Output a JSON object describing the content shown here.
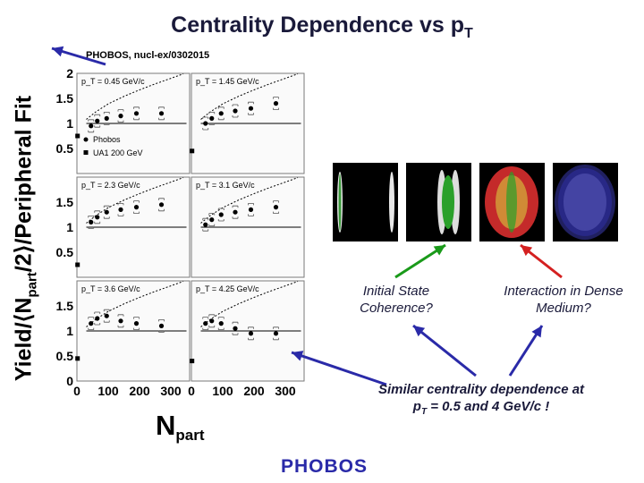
{
  "slide": {
    "title_main": "Centrality Dependence vs p",
    "title_sub": "T",
    "reference": "PHOBOS, nucl-ex/0302015",
    "y_label": "Yield/⟨N",
    "y_label_sub": "part",
    "y_label_tail": "/2⟩/Peripheral Fit",
    "x_label_main": "N",
    "x_label_sub": "part",
    "note_initial": "Initial State Coherence?",
    "note_interaction": "Interaction in Dense Medium?",
    "note_conclusion_1": "Similar centrality dependence at",
    "note_conclusion_2": "p",
    "note_conclusion_sub": "T",
    "note_conclusion_3": " = 0.5 and 4 GeV/c !",
    "logo_text": "PHOBOS",
    "colors": {
      "title": "#1a1a3a",
      "arrow_blue": "#2a2aa8",
      "arrow_green": "#1a9a1a",
      "arrow_red": "#d42020",
      "panel_border": "#7a7a7a"
    }
  },
  "chart_data": {
    "type": "scatter",
    "grid": "3x2 panels",
    "xlim": [
      0,
      360
    ],
    "ylim": [
      0,
      2
    ],
    "x_ticks": [
      "0",
      "100",
      "200",
      "300"
    ],
    "y_ticks": [
      "0",
      "0.5",
      "1",
      "1.5",
      "2"
    ],
    "legend": [
      "Phobos",
      "UA1 200 GeV"
    ],
    "panels": [
      {
        "label": "p_T = 0.45 GeV/c",
        "tick_top": "2",
        "phobos_x": [
          45,
          65,
          95,
          140,
          190,
          270
        ],
        "phobos_y": [
          0.95,
          1.05,
          1.1,
          1.15,
          1.2,
          1.2
        ],
        "ua1_x": [
          2
        ],
        "ua1_y": [
          0.75
        ],
        "curve_x": [
          30,
          60,
          100,
          150,
          200,
          250,
          300,
          340
        ],
        "curve_y": [
          1.08,
          1.23,
          1.39,
          1.54,
          1.67,
          1.79,
          1.9,
          1.99
        ]
      },
      {
        "label": "p_T = 1.45 GeV/c",
        "tick_top": "",
        "phobos_x": [
          45,
          65,
          95,
          140,
          190,
          270
        ],
        "phobos_y": [
          1.0,
          1.1,
          1.2,
          1.25,
          1.3,
          1.4
        ],
        "ua1_x": [
          2
        ],
        "ua1_y": [
          0.45
        ],
        "curve_x": [
          30,
          60,
          100,
          150,
          200,
          250,
          300,
          340
        ],
        "curve_y": [
          1.08,
          1.23,
          1.39,
          1.54,
          1.67,
          1.79,
          1.9,
          1.99
        ]
      },
      {
        "label": "p_T = 2.3 GeV/c",
        "tick_top": "",
        "phobos_x": [
          45,
          65,
          95,
          140,
          190,
          270
        ],
        "phobos_y": [
          1.1,
          1.2,
          1.3,
          1.35,
          1.4,
          1.45
        ],
        "ua1_x": [
          2
        ],
        "ua1_y": [
          0.25
        ],
        "curve_x": [
          30,
          60,
          100,
          150,
          200,
          250,
          300,
          340
        ],
        "curve_y": [
          1.08,
          1.23,
          1.39,
          1.54,
          1.67,
          1.79,
          1.9,
          1.99
        ]
      },
      {
        "label": "p_T = 3.1 GeV/c",
        "tick_top": "",
        "phobos_x": [
          45,
          65,
          95,
          140,
          190,
          270
        ],
        "phobos_y": [
          1.05,
          1.15,
          1.25,
          1.3,
          1.35,
          1.4
        ],
        "ua1_x": [],
        "ua1_y": [],
        "curve_x": [
          30,
          60,
          100,
          150,
          200,
          250,
          300,
          340
        ],
        "curve_y": [
          1.08,
          1.23,
          1.39,
          1.54,
          1.67,
          1.79,
          1.9,
          1.99
        ]
      },
      {
        "label": "p_T = 3.6 GeV/c",
        "tick_top": "",
        "phobos_x": [
          45,
          65,
          95,
          140,
          190,
          270
        ],
        "phobos_y": [
          1.15,
          1.25,
          1.3,
          1.2,
          1.15,
          1.1
        ],
        "ua1_x": [
          2
        ],
        "ua1_y": [
          0.45
        ],
        "curve_x": [
          30,
          60,
          100,
          150,
          200,
          250,
          300,
          340
        ],
        "curve_y": [
          1.08,
          1.23,
          1.39,
          1.54,
          1.67,
          1.79,
          1.9,
          1.99
        ]
      },
      {
        "label": "p_T = 4.25 GeV/c",
        "tick_top": "",
        "phobos_x": [
          45,
          65,
          95,
          140,
          190,
          270
        ],
        "phobos_y": [
          1.15,
          1.2,
          1.15,
          1.05,
          0.95,
          0.95
        ],
        "ua1_x": [
          2
        ],
        "ua1_y": [
          0.4
        ],
        "curve_x": [
          30,
          60,
          100,
          150,
          200,
          250,
          300,
          340
        ],
        "curve_y": [
          1.08,
          1.23,
          1.39,
          1.54,
          1.67,
          1.79,
          1.9,
          1.99
        ]
      }
    ]
  }
}
